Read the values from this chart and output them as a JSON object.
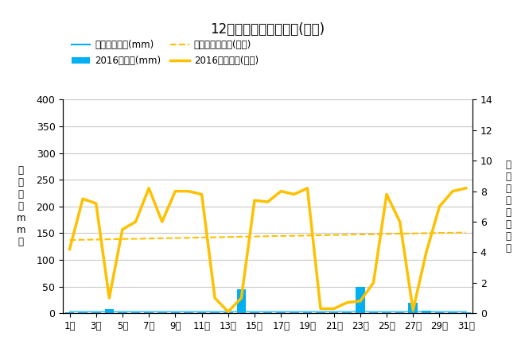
{
  "title": "12月降水量・日照時間(日別)",
  "days": [
    1,
    2,
    3,
    4,
    5,
    6,
    7,
    8,
    9,
    10,
    11,
    12,
    13,
    14,
    15,
    16,
    17,
    18,
    19,
    20,
    21,
    22,
    23,
    24,
    25,
    26,
    27,
    28,
    29,
    30,
    31
  ],
  "day_labels": [
    "1日",
    "3日",
    "5日",
    "7日",
    "9日",
    "11日",
    "13日",
    "15日",
    "17日",
    "19日",
    "21日",
    "23日",
    "25日",
    "27日",
    "29日",
    "31日"
  ],
  "day_label_ticks": [
    1,
    3,
    5,
    7,
    9,
    11,
    13,
    15,
    17,
    19,
    21,
    23,
    25,
    27,
    29,
    31
  ],
  "precip_2016": [
    2,
    2,
    2,
    8,
    2,
    2,
    2,
    2,
    2,
    2,
    2,
    2,
    2,
    45,
    2,
    2,
    2,
    2,
    2,
    2,
    2,
    2,
    50,
    2,
    2,
    2,
    20,
    5,
    2,
    2,
    2
  ],
  "precip_avg": [
    4,
    4,
    4,
    4,
    4,
    4,
    4,
    4,
    4,
    4,
    4,
    4,
    4,
    4,
    4,
    4,
    4,
    4,
    4,
    4,
    4,
    4,
    4,
    4,
    4,
    4,
    4,
    4,
    4,
    4,
    4
  ],
  "sunshine_2016": [
    4.2,
    7.5,
    7.2,
    1.0,
    5.5,
    6.0,
    8.2,
    6.0,
    8.0,
    8.0,
    7.8,
    1.0,
    0.1,
    1.0,
    7.4,
    7.3,
    8.0,
    7.8,
    8.2,
    0.3,
    0.3,
    0.7,
    0.8,
    2.0,
    7.8,
    6.0,
    0.2,
    4.0,
    7.0,
    8.0,
    8.2
  ],
  "sunshine_avg": [
    4.8,
    4.82,
    4.83,
    4.85,
    4.87,
    4.88,
    4.9,
    4.92,
    4.93,
    4.95,
    4.97,
    4.98,
    5.0,
    5.02,
    5.03,
    5.05,
    5.07,
    5.08,
    5.1,
    5.12,
    5.13,
    5.15,
    5.17,
    5.18,
    5.2,
    5.22,
    5.23,
    5.25,
    5.27,
    5.28,
    5.3
  ],
  "ylim_left": [
    0,
    400
  ],
  "ylim_right": [
    0,
    14
  ],
  "yticks_left": [
    0,
    50,
    100,
    150,
    200,
    250,
    300,
    350,
    400
  ],
  "yticks_right": [
    0,
    2,
    4,
    6,
    8,
    10,
    12,
    14
  ],
  "bar_color": "#00B0F0",
  "bar_avg_color": "#00B0F0",
  "sunshine_color": "#FFC000",
  "sunshine_avg_color": "#FFC000",
  "ylabel_left": "降\n水\n量\n（\nm\nm\n）",
  "ylabel_right": "日\n照\n時\n間\n（\n時\n間\n）",
  "background_color": "#ffffff",
  "grid_color": "#c8c8c8",
  "legend_labels": [
    "降水量平年値(mm)",
    "2016降水量(mm)",
    "日照時間平年値(時間)",
    "2016日照時間(時間)"
  ]
}
